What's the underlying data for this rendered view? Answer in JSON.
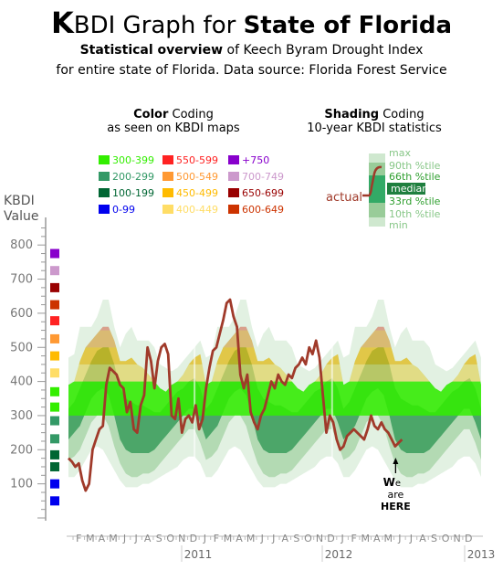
{
  "title": {
    "prefix_k": "K",
    "rest_1": "BDI Graph for ",
    "bold": "State of Florida"
  },
  "subtitle_1": {
    "bold": "Statistical overview",
    "rest": " of Keech Byram Drought Index"
  },
  "subtitle_2": "for entire state of Florida.  Data source: Florida Forest Service",
  "color_coding": {
    "bold": "Color",
    "rest": " Coding",
    "line2": "as seen on KBDI maps"
  },
  "shading_coding": {
    "bold": "Shading",
    "rest": " Coding",
    "line2": "10-year KBDI statistics"
  },
  "y_axis_label": [
    "KBDI",
    "Value"
  ],
  "color_legend": [
    {
      "label": "300-399",
      "color": "#33ee00"
    },
    {
      "label": "550-599",
      "color": "#ff2222"
    },
    {
      "label": "+750",
      "color": "#8800cc"
    },
    {
      "label": "200-299",
      "color": "#339966"
    },
    {
      "label": "500-549",
      "color": "#ff9933"
    },
    {
      "label": "700-749",
      "color": "#cc99cc"
    },
    {
      "label": "100-199",
      "color": "#006633"
    },
    {
      "label": "450-499",
      "color": "#ffbb00"
    },
    {
      "label": "650-699",
      "color": "#990000"
    },
    {
      "label": "0-99",
      "color": "#0000ee"
    },
    {
      "label": "400-449",
      "color": "#ffdd66"
    },
    {
      "label": "600-649",
      "color": "#cc3300"
    }
  ],
  "shading_legend": {
    "labels": [
      "max",
      "90th %tile",
      "66th %tile",
      "median",
      "33rd %tile",
      "10th %tile",
      "min"
    ],
    "actual_label": "actual"
  },
  "annotation": {
    "w": "W",
    "e": "e",
    "are": "are",
    "here": "HERE"
  },
  "colors": {
    "actual_line": "#a03a2a",
    "axis": "#999999"
  },
  "chart_data": {
    "type": "line",
    "title": "KBDI Graph for State of Florida",
    "ylabel": "KBDI Value",
    "ylim": [
      0,
      850
    ],
    "yticks": [
      100,
      200,
      300,
      400,
      500,
      600,
      700,
      800
    ],
    "month_labels": [
      "F",
      "M",
      "A",
      "M",
      "J",
      "J",
      "A",
      "S",
      "O",
      "N",
      "D",
      "J",
      "F",
      "M",
      "A",
      "M",
      "J",
      "J",
      "A",
      "S",
      "O",
      "N",
      "D",
      "J",
      "F",
      "M",
      "A",
      "M",
      "J",
      "J",
      "A",
      "S",
      "O",
      "N",
      "D"
    ],
    "year_labels": [
      "2011",
      "2012",
      "2013"
    ],
    "x_start": "2010-01",
    "x_end": "2012-12",
    "color_bands": [
      {
        "range": "0-99",
        "color": "#0000ee"
      },
      {
        "range": "100-199",
        "color": "#006633"
      },
      {
        "range": "200-299",
        "color": "#339966"
      },
      {
        "range": "300-399",
        "color": "#33ee00"
      },
      {
        "range": "400-449",
        "color": "#ffdd66"
      },
      {
        "range": "450-499",
        "color": "#ffbb00"
      },
      {
        "range": "500-549",
        "color": "#ff9933"
      },
      {
        "range": "550-599",
        "color": "#ff2222"
      },
      {
        "range": "600-649",
        "color": "#cc3300"
      },
      {
        "range": "650-699",
        "color": "#990000"
      },
      {
        "range": "700-749",
        "color": "#cc99cc"
      },
      {
        "range": "+750",
        "color": "#8800cc"
      }
    ],
    "stat_x": [
      0,
      0.5,
      1,
      1.5,
      2,
      2.5,
      3,
      3.5,
      4,
      4.5,
      5,
      5.5,
      6,
      6.5,
      7,
      7.5,
      8,
      8.5,
      9,
      9.5,
      10,
      10.5,
      11,
      11.5,
      12
    ],
    "series": [
      {
        "name": "max",
        "values": [
          470,
          480,
          560,
          560,
          560,
          590,
          640,
          640,
          560,
          500,
          540,
          560,
          520,
          520,
          520,
          500,
          450,
          440,
          430,
          440,
          460,
          480,
          500,
          520,
          470
        ]
      },
      {
        "name": "90th %tile",
        "values": [
          390,
          400,
          460,
          500,
          520,
          540,
          560,
          560,
          520,
          460,
          460,
          470,
          450,
          440,
          420,
          400,
          380,
          370,
          390,
          400,
          420,
          450,
          470,
          480,
          390
        ]
      },
      {
        "name": "66th %tile",
        "values": [
          320,
          340,
          380,
          420,
          460,
          490,
          500,
          500,
          450,
          380,
          350,
          340,
          330,
          330,
          320,
          310,
          310,
          330,
          350,
          370,
          380,
          400,
          410,
          380,
          320
        ]
      },
      {
        "name": "median",
        "values": [
          280,
          300,
          330,
          370,
          410,
          440,
          450,
          440,
          380,
          300,
          260,
          250,
          250,
          250,
          250,
          260,
          270,
          290,
          310,
          330,
          350,
          370,
          370,
          330,
          280
        ]
      },
      {
        "name": "33rd %tile",
        "values": [
          230,
          250,
          270,
          310,
          350,
          370,
          380,
          360,
          300,
          230,
          200,
          190,
          190,
          190,
          190,
          200,
          220,
          240,
          260,
          280,
          300,
          320,
          320,
          280,
          230
        ]
      },
      {
        "name": "10th %tile",
        "values": [
          170,
          180,
          200,
          240,
          280,
          300,
          300,
          270,
          210,
          160,
          130,
          120,
          120,
          130,
          130,
          140,
          160,
          180,
          200,
          220,
          240,
          260,
          260,
          220,
          170
        ]
      },
      {
        "name": "min",
        "values": [
          120,
          120,
          140,
          170,
          200,
          210,
          200,
          170,
          140,
          110,
          90,
          90,
          90,
          100,
          100,
          110,
          120,
          130,
          140,
          150,
          170,
          180,
          180,
          160,
          120
        ]
      }
    ],
    "actual": {
      "name": "actual",
      "x": [
        0,
        0.3,
        0.6,
        0.9,
        1.2,
        1.5,
        1.8,
        2.1,
        2.4,
        2.7,
        3.0,
        3.3,
        3.6,
        3.9,
        4.2,
        4.5,
        4.8,
        5.1,
        5.4,
        5.7,
        6.0,
        6.3,
        6.6,
        6.9,
        7.2,
        7.5,
        7.8,
        8.1,
        8.4,
        8.7,
        9.0,
        9.3,
        9.6,
        9.9,
        10.2,
        10.5,
        10.8,
        11.1,
        11.4,
        11.7,
        12.0,
        12.3,
        12.6,
        12.9,
        13.2,
        13.5,
        13.8,
        14.1,
        14.4,
        14.7,
        15.0,
        15.3,
        15.6,
        15.9,
        16.2,
        16.5,
        16.8,
        17.1,
        17.4,
        17.7,
        18.0,
        18.3,
        18.6,
        18.9,
        19.2,
        19.5,
        19.8,
        20.1,
        20.4,
        20.7,
        21.0,
        21.3,
        21.6,
        21.9,
        22.2,
        22.5,
        22.8,
        23.1,
        23.4,
        23.7,
        24.0,
        24.3,
        24.6,
        24.9,
        25.2,
        25.5,
        25.8,
        26.1,
        26.4,
        26.7,
        27.0,
        27.3,
        27.6,
        27.9,
        28.2,
        28.5,
        28.8,
        29.1
      ],
      "values": [
        175,
        165,
        150,
        160,
        110,
        80,
        100,
        200,
        230,
        260,
        270,
        390,
        440,
        430,
        420,
        390,
        380,
        310,
        340,
        260,
        250,
        330,
        360,
        500,
        460,
        380,
        460,
        500,
        510,
        480,
        300,
        290,
        350,
        250,
        290,
        300,
        280,
        330,
        260,
        290,
        380,
        440,
        490,
        500,
        540,
        580,
        630,
        640,
        590,
        560,
        420,
        380,
        420,
        310,
        280,
        260,
        300,
        320,
        360,
        400,
        380,
        420,
        400,
        390,
        420,
        410,
        440,
        450,
        470,
        450,
        500,
        480,
        520,
        470,
        360,
        250,
        300,
        280,
        230,
        200,
        210,
        240,
        250,
        260,
        250,
        240,
        230,
        260,
        300,
        270,
        260,
        280,
        260,
        250,
        230,
        210,
        220,
        230
      ]
    }
  }
}
